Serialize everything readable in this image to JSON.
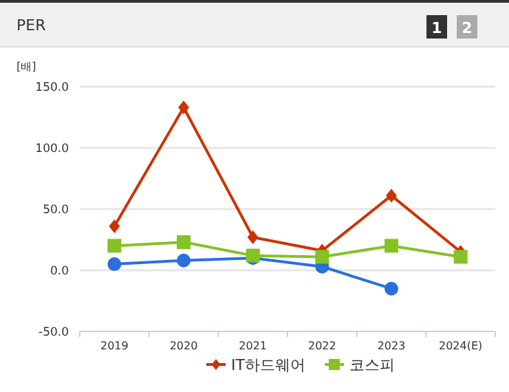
{
  "chart_data": {
    "type": "line",
    "title": "PER",
    "ylabel": "[배]",
    "categories": [
      "2019",
      "2020",
      "2021",
      "2022",
      "2023",
      "2024(E)"
    ],
    "series": [
      {
        "color": "#2a6fdb",
        "marker": "circle",
        "values": [
          5,
          8,
          10,
          3,
          -15,
          null
        ]
      },
      {
        "name": "IT하드웨어",
        "color": "#cc3300",
        "marker": "diamond",
        "values": [
          36,
          133,
          27,
          16,
          61,
          15
        ]
      },
      {
        "name": "코스피",
        "color": "#84c225",
        "marker": "square",
        "values": [
          20,
          23,
          12,
          11,
          20,
          11
        ]
      }
    ],
    "ylim": [
      -50,
      150
    ],
    "yticks": [
      {
        "value": -50,
        "label": "-50.0"
      },
      {
        "value": 0,
        "label": "0.0"
      },
      {
        "value": 50,
        "label": "50.0"
      },
      {
        "value": 100,
        "label": "100.0"
      },
      {
        "value": 150,
        "label": "150.0"
      }
    ],
    "grid": "y",
    "legend": "bottom",
    "annotations": [
      "1",
      "2"
    ]
  }
}
